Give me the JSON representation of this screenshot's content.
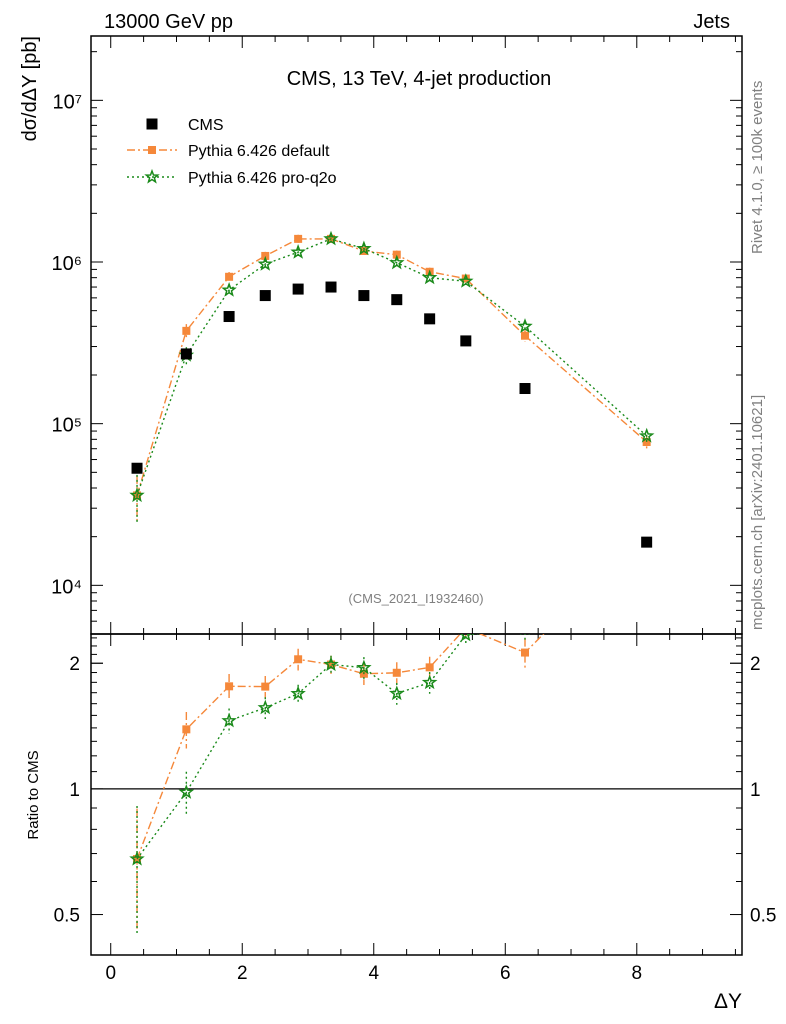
{
  "header": {
    "left": "13000 GeV pp",
    "right": "Jets"
  },
  "side_labels": {
    "rivet": "Rivet 4.1.0, ≥ 100k events",
    "source": "mcplots.cern.ch [arXiv:2401.10621]"
  },
  "colors": {
    "cms": "#000000",
    "default": "#f5883a",
    "proq2o": "#1a8a1a"
  },
  "chart_data": {
    "type": "scatter",
    "title": "CMS, 13 TeV, 4-jet production",
    "analysis_tag": "(CMS_2021_I1932460)",
    "xlabel": "ΔY",
    "ylabel": "dσ/dΔY [pb]",
    "ratio_ylabel": "Ratio to CMS",
    "y_scale": "log",
    "ylim": [
      5000,
      25000000
    ],
    "xlim": [
      -0.3,
      9.6
    ],
    "ratio_ylim": [
      0.4,
      2.35
    ],
    "x_ticks": [
      0,
      2,
      4,
      6,
      8
    ],
    "x_tick_labels": [
      "0",
      "2",
      "4",
      "6",
      "8"
    ],
    "y_major_ticks": [
      10000,
      100000,
      1000000,
      10000000
    ],
    "y_tick_labels": [
      "10⁴",
      "10⁵",
      "10⁶",
      "10⁷"
    ],
    "ratio_ticks": [
      0.5,
      1,
      2
    ],
    "ratio_tick_labels": [
      "0.5",
      "1",
      "2"
    ],
    "legend": [
      {
        "label": "CMS",
        "series": "cms"
      },
      {
        "label": "Pythia 6.426 default",
        "series": "default"
      },
      {
        "label": "Pythia 6.426 pro-q2o",
        "series": "proq2o"
      }
    ],
    "x": [
      0.4,
      1.15,
      1.8,
      2.35,
      2.85,
      3.35,
      3.85,
      4.35,
      4.85,
      5.4,
      6.3,
      8.15
    ],
    "series": [
      {
        "name": "CMS",
        "key": "cms",
        "values": [
          53000,
          270000,
          460000,
          620000,
          680000,
          700000,
          620000,
          585000,
          445000,
          325000,
          165000,
          18500
        ]
      },
      {
        "name": "Pythia 6.426 default",
        "key": "default",
        "values": [
          36000,
          375000,
          810000,
          1090000,
          1390000,
          1390000,
          1170000,
          1110000,
          870000,
          790000,
          350000,
          77000
        ],
        "err_rel": [
          0.32,
          0.1,
          0.07,
          0.06,
          0.06,
          0.05,
          0.06,
          0.06,
          0.06,
          0.05,
          0.08,
          0.1
        ]
      },
      {
        "name": "Pythia 6.426 pro-q2o",
        "key": "proq2o",
        "values": [
          36000,
          265000,
          670000,
          970000,
          1150000,
          1390000,
          1210000,
          990000,
          800000,
          760000,
          400000,
          84000
        ],
        "err_rel": [
          0.34,
          0.12,
          0.07,
          0.06,
          0.05,
          0.05,
          0.06,
          0.06,
          0.06,
          0.05,
          0.06,
          0.09
        ]
      }
    ]
  }
}
